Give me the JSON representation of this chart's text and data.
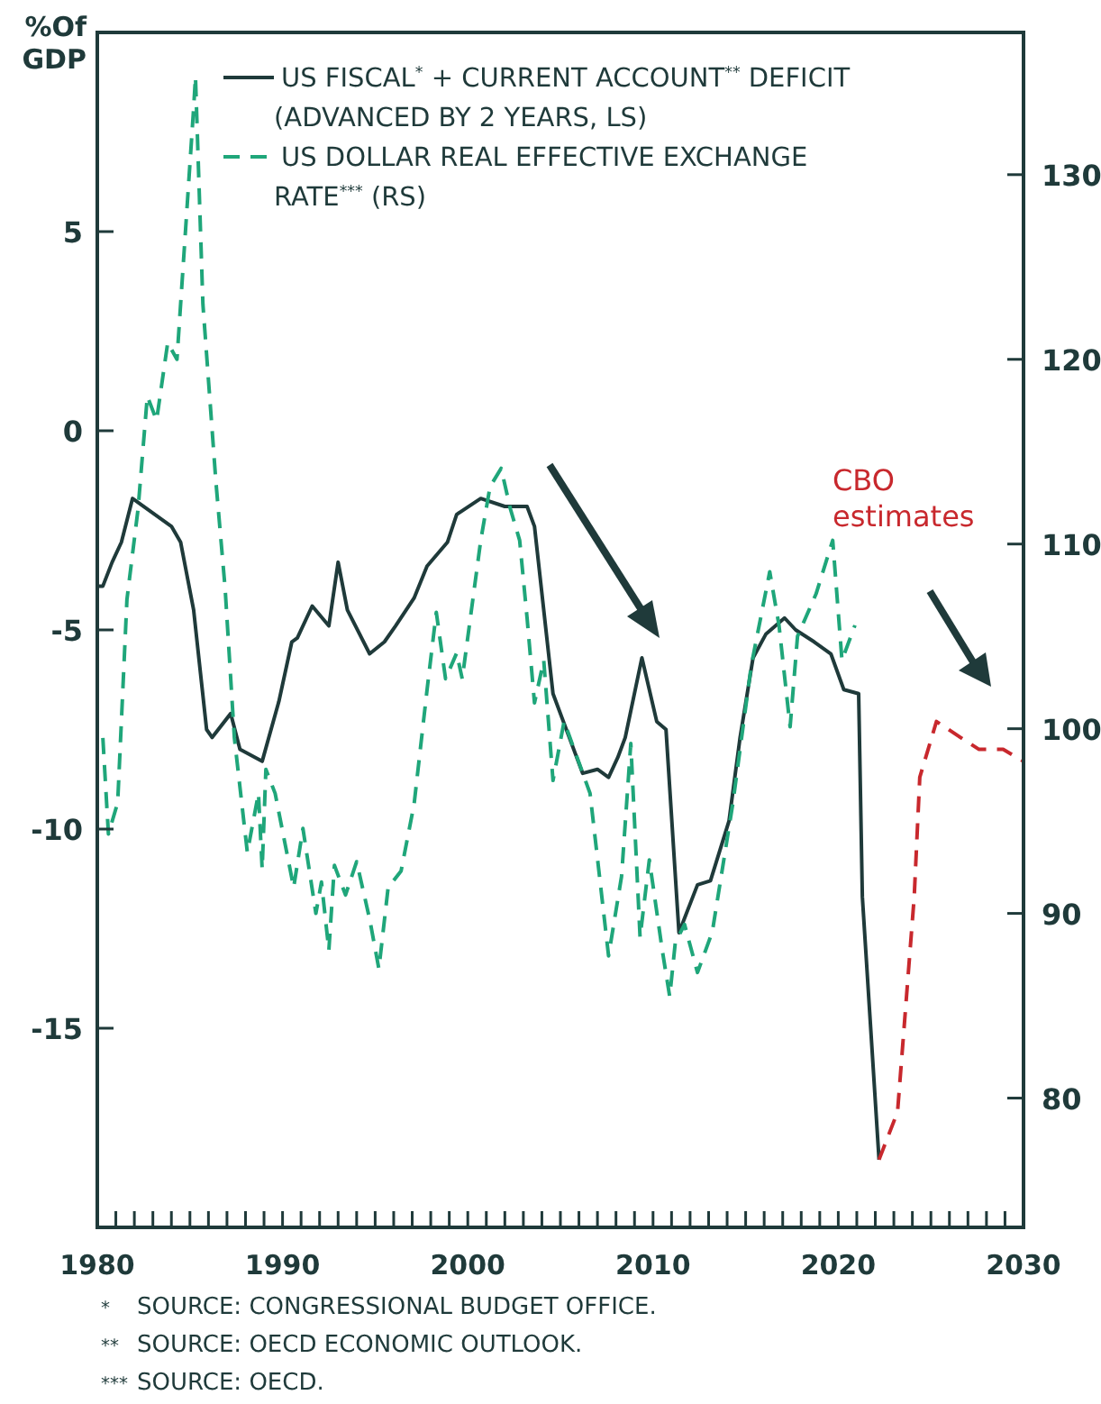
{
  "chart_data": {
    "type": "line",
    "ylabel": "%Of GDP",
    "xlim": [
      1980,
      2030
    ],
    "ylim": [
      -20,
      10
    ],
    "y2lim": [
      73,
      137.7
    ],
    "xticks": [
      1980,
      {
        "value": 1981,
        "label": null
      },
      {
        "value": 1982,
        "label": null
      },
      {
        "value": 1983,
        "label": null
      },
      {
        "value": 1984,
        "label": null
      },
      {
        "value": 1985,
        "label": null
      },
      {
        "value": 1986,
        "label": null
      },
      {
        "value": 1987,
        "label": null
      },
      {
        "value": 1988,
        "label": null
      },
      {
        "value": 1989,
        "label": null
      },
      1990,
      {
        "value": 1991,
        "label": null
      },
      {
        "value": 1992,
        "label": null
      },
      {
        "value": 1993,
        "label": null
      },
      {
        "value": 1994,
        "label": null
      },
      {
        "value": 1995,
        "label": null
      },
      {
        "value": 1996,
        "label": null
      },
      {
        "value": 1997,
        "label": null
      },
      {
        "value": 1998,
        "label": null
      },
      {
        "value": 1999,
        "label": null
      },
      2000,
      {
        "value": 2001,
        "label": null
      },
      {
        "value": 2002,
        "label": null
      },
      {
        "value": 2003,
        "label": null
      },
      {
        "value": 2004,
        "label": null
      },
      {
        "value": 2005,
        "label": null
      },
      {
        "value": 2006,
        "label": null
      },
      {
        "value": 2007,
        "label": null
      },
      {
        "value": 2008,
        "label": null
      },
      {
        "value": 2009,
        "label": null
      },
      2010,
      {
        "value": 2011,
        "label": null
      },
      {
        "value": 2012,
        "label": null
      },
      {
        "value": 2013,
        "label": null
      },
      {
        "value": 2014,
        "label": null
      },
      {
        "value": 2015,
        "label": null
      },
      {
        "value": 2016,
        "label": null
      },
      {
        "value": 2017,
        "label": null
      },
      {
        "value": 2018,
        "label": null
      },
      {
        "value": 2019,
        "label": null
      },
      2020,
      {
        "value": 2021,
        "label": null
      },
      {
        "value": 2022,
        "label": null
      },
      {
        "value": 2023,
        "label": null
      },
      {
        "value": 2024,
        "label": null
      },
      {
        "value": 2025,
        "label": null
      },
      {
        "value": 2026,
        "label": null
      },
      {
        "value": 2027,
        "label": null
      },
      {
        "value": 2028,
        "label": null
      },
      {
        "value": 2029,
        "label": null
      },
      2030
    ],
    "yticks": [
      -15,
      -10,
      -5,
      0,
      5
    ],
    "y2ticks": [
      80,
      90,
      100,
      110,
      120,
      130
    ],
    "grid": false,
    "legend": "top",
    "series": [
      {
        "name": "US FISCAL$^{*}$ + CURRENT ACCOUNT$^{**}$ DEFICIT (ADVANCED BY 2 YEARS, LS)",
        "color": "#1f3a3a",
        "line_style": "solid",
        "x": [
          1980,
          1980.3,
          1980.8,
          1981.3,
          1981.9,
          1984,
          1984.5,
          1985.2,
          1985.9,
          1986.2,
          1987.2,
          1987.7,
          1988.9,
          1989.8,
          1990.5,
          1990.8,
          1991.6,
          1992.5,
          1993,
          1993.5,
          1994.7,
          1995.5,
          1996.1,
          1997.1,
          1997.8,
          1998.9,
          1999.4,
          2000.7,
          2002,
          2003.2,
          2003.6,
          2004.6,
          2006.2,
          2007,
          2007.6,
          2008.1,
          2008.5,
          2009.4,
          2010.2,
          2010.7,
          2011.4,
          2012.4,
          2013.1,
          2014.1,
          2014.7,
          2015.4,
          2016.1,
          2017.1,
          2017.7,
          2018.7,
          2019.6,
          2020.3,
          2021.1,
          2021.3,
          2022.2
        ],
        "values": [
          -3.9,
          -3.9,
          -3.3,
          -2.8,
          -1.7,
          -2.4,
          -2.8,
          -4.5,
          -7.5,
          -7.7,
          -7.1,
          -8,
          -8.3,
          -6.8,
          -5.3,
          -5.2,
          -4.4,
          -4.9,
          -3.3,
          -4.5,
          -5.6,
          -5.3,
          -4.9,
          -4.2,
          -3.4,
          -2.8,
          -2.1,
          -1.7,
          -1.9,
          -1.9,
          -2.4,
          -6.6,
          -8.6,
          -8.5,
          -8.7,
          -8.2,
          -7.7,
          -5.7,
          -7.3,
          -7.5,
          -12.6,
          -11.4,
          -11.3,
          -9.8,
          -7.7,
          -5.7,
          -5.1,
          -4.7,
          -5,
          -5.3,
          -5.6,
          -6.5,
          -6.6,
          -11.7,
          -18.3
        ]
      },
      {
        "name": "US DOLLAR REAL EFFECTIVE EXCHANGE RATE$^{***}$ (RS)",
        "color": "#1fa67a",
        "line_style": "dashed",
        "axis": "y2",
        "x": [
          1980.3,
          1980.6,
          1981.1,
          1981.6,
          1982.2,
          1982.7,
          1983.2,
          1983.8,
          1984.3,
          1985.2,
          1985.3,
          1985.7,
          1986.4,
          1986.9,
          1987.4,
          1988.1,
          1988.7,
          1988.9,
          1989.1,
          1989.6,
          1990.6,
          1991.1,
          1991.8,
          1992.1,
          1992.5,
          1992.8,
          1993.4,
          1994,
          1994.7,
          1995.2,
          1995.7,
          1996.4,
          1997.1,
          1997.8,
          1998.3,
          1998.8,
          1999.4,
          1999.7,
          2000.7,
          2001.2,
          2001.8,
          2002.3,
          2002.8,
          2003.2,
          2003.6,
          2004.1,
          2004.6,
          2005.2,
          2006.6,
          2007.6,
          2008.3,
          2008.8,
          2009.3,
          2009.8,
          2010.5,
          2010.9,
          2011.2,
          2011.7,
          2012.4,
          2013.2,
          2014.3,
          2015.3,
          2016.3,
          2016.8,
          2017.4,
          2017.8,
          2018.8,
          2019.7,
          2020.2,
          2020.9
        ],
        "values": [
          99.5,
          94.3,
          96,
          107,
          111.9,
          118,
          116.7,
          120.9,
          120,
          133.6,
          135.3,
          123,
          113.4,
          107.6,
          99.5,
          93.3,
          96.5,
          92.4,
          97.8,
          96.5,
          91.4,
          94.6,
          90,
          91.7,
          88,
          92.6,
          91,
          92.8,
          89.7,
          87,
          91.4,
          92.3,
          95.9,
          102.1,
          106.3,
          102.7,
          104.1,
          102.7,
          110.2,
          113.1,
          114.1,
          111.9,
          110.2,
          106,
          101.4,
          103.7,
          97.2,
          100.4,
          96.5,
          87.7,
          92,
          99.2,
          88.7,
          92.9,
          88,
          85.5,
          88.4,
          89.4,
          86.8,
          89,
          95.9,
          103.4,
          108.5,
          105.6,
          100.1,
          105,
          107.3,
          110.2,
          103.7,
          105.6
        ]
      },
      {
        "color": "#c8282d",
        "line_style": "dashed",
        "x": [
          2022.2,
          2023.2,
          2024.1,
          2024.4,
          2025.3,
          2026.6,
          2027.6,
          2028.9,
          2030
        ],
        "values": [
          -18.3,
          -17.1,
          -11.7,
          -8.7,
          -7.3,
          -7.7,
          -8,
          -8,
          -8.3
        ]
      }
    ],
    "annotations": [
      "CBO estimates",
      "*  SOURCE: CONGRESSIONAL BUDGET OFFICE.",
      "**  SOURCE: OECD ECONOMIC OUTLOOK.",
      "***  SOURCE: OECD."
    ]
  }
}
